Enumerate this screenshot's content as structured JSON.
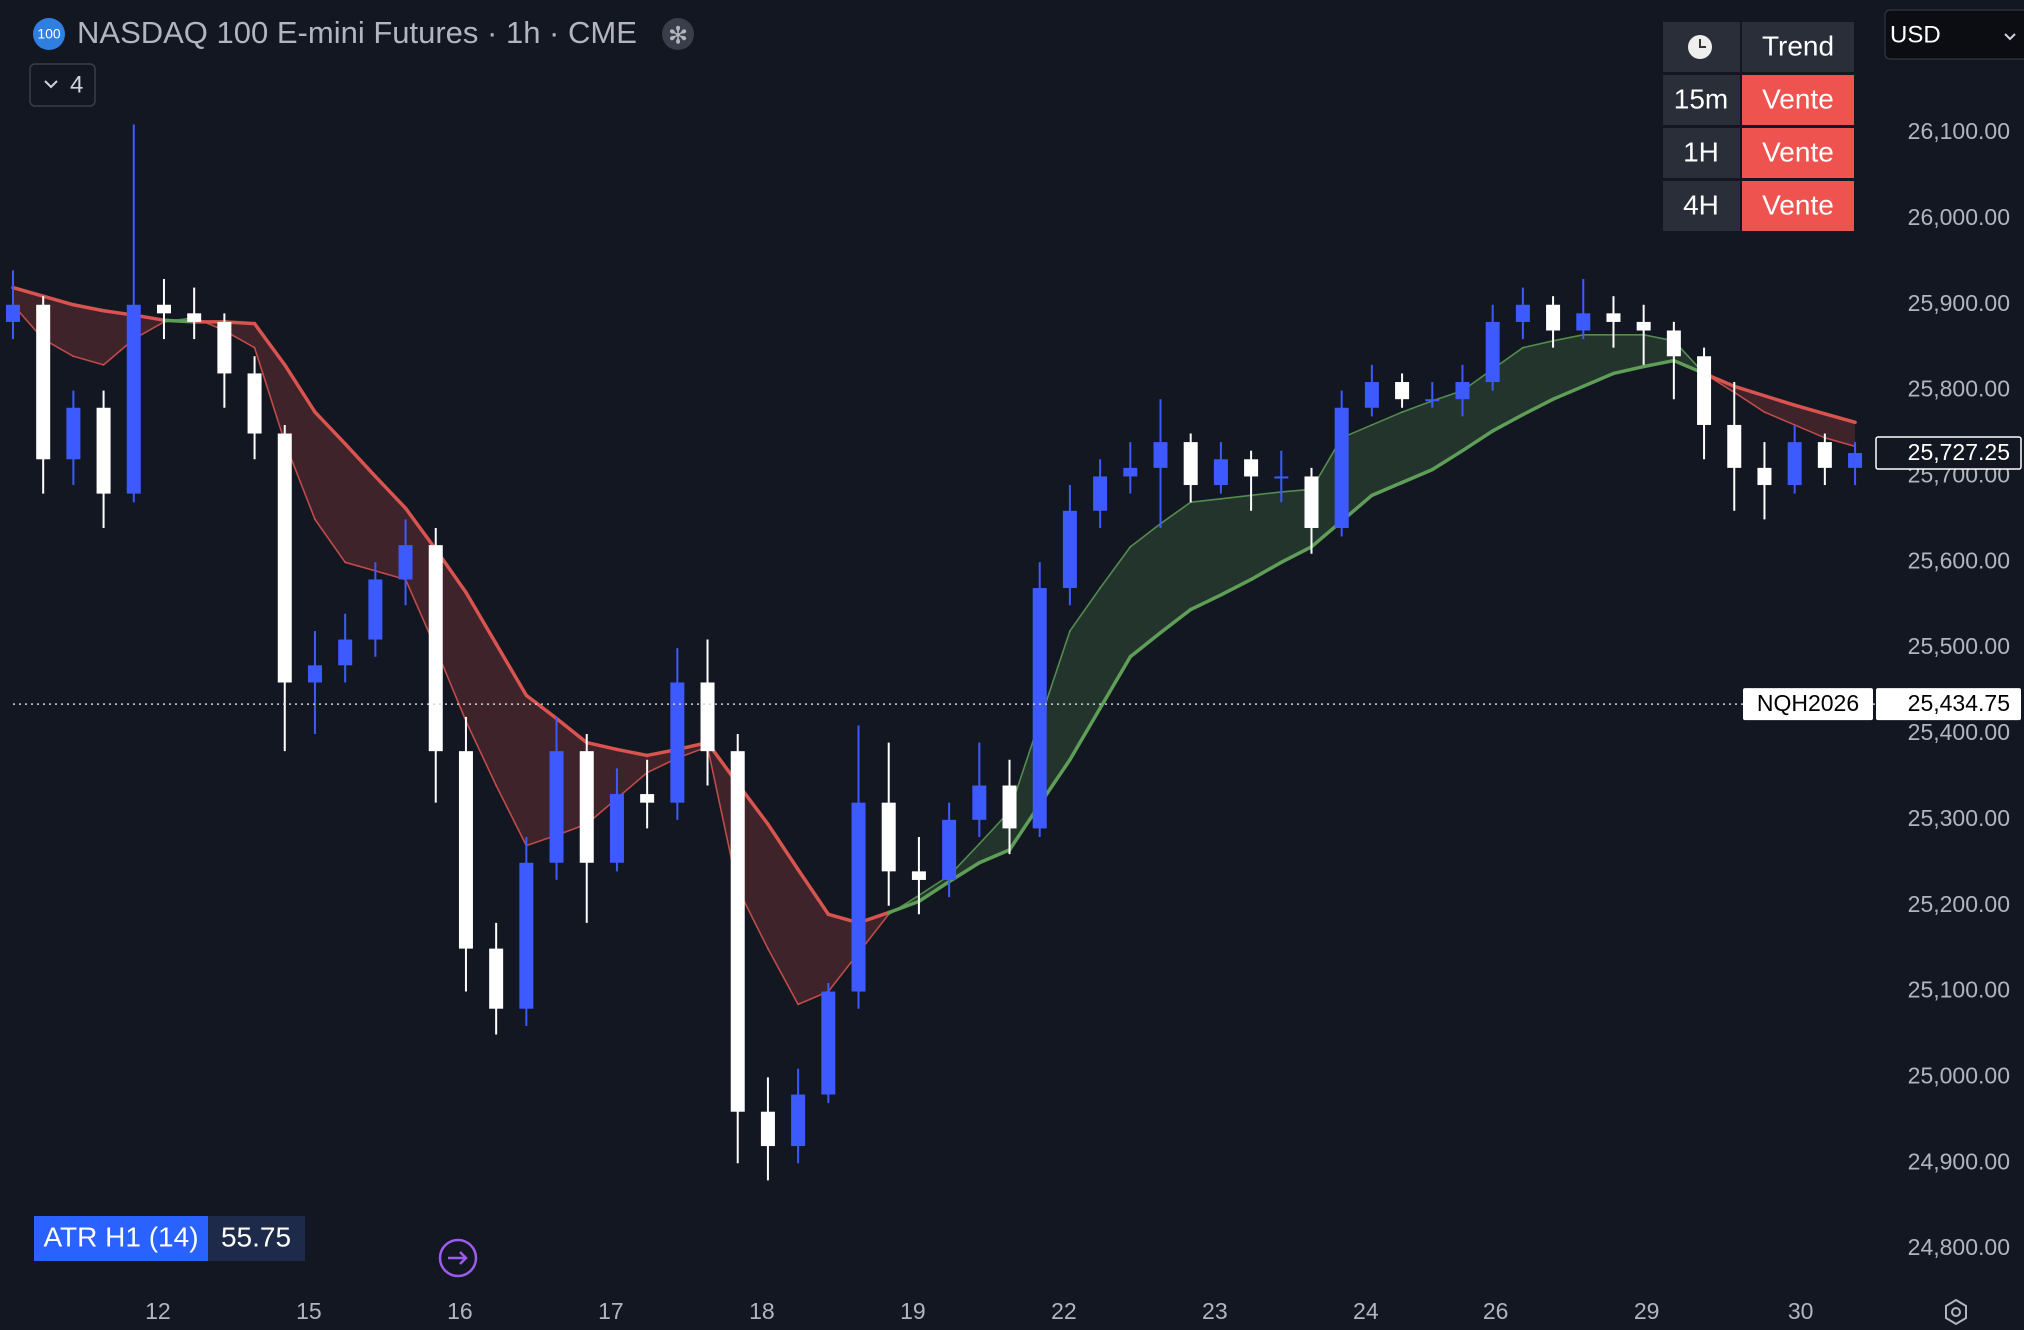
{
  "symbol": {
    "badge": "100",
    "title": "NASDAQ 100 E-mini Futures · 1h · CME",
    "indicator_count": "4",
    "currency": "USD"
  },
  "trend_table": {
    "header": "Trend",
    "rows": [
      [
        "15m",
        "Vente"
      ],
      [
        "1H",
        "Vente"
      ],
      [
        "4H",
        "Vente"
      ]
    ]
  },
  "atr": {
    "label": "ATR H1 (14)",
    "value": 55.75
  },
  "chart_data": {
    "type": "candlestick",
    "candle_up_color": "#3d5afe",
    "candle_down_color": "#ffffff",
    "candles": [
      [
        25880,
        25940,
        25860,
        25900
      ],
      [
        25900,
        25910,
        25680,
        25720
      ],
      [
        25720,
        25800,
        25690,
        25780
      ],
      [
        25780,
        25800,
        25640,
        25680
      ],
      [
        25680,
        26110,
        25670,
        25900
      ],
      [
        25900,
        25930,
        25860,
        25890
      ],
      [
        25890,
        25920,
        25860,
        25880
      ],
      [
        25880,
        25890,
        25780,
        25820
      ],
      [
        25820,
        25840,
        25720,
        25750
      ],
      [
        25750,
        25760,
        25380,
        25460
      ],
      [
        25460,
        25520,
        25400,
        25480
      ],
      [
        25480,
        25540,
        25460,
        25510
      ],
      [
        25510,
        25600,
        25490,
        25580
      ],
      [
        25580,
        25650,
        25550,
        25620
      ],
      [
        25620,
        25640,
        25320,
        25380
      ],
      [
        25380,
        25420,
        25100,
        25150
      ],
      [
        25150,
        25180,
        25050,
        25080
      ],
      [
        25080,
        25280,
        25060,
        25250
      ],
      [
        25250,
        25420,
        25230,
        25380
      ],
      [
        25380,
        25400,
        25180,
        25250
      ],
      [
        25250,
        25360,
        25240,
        25330
      ],
      [
        25330,
        25370,
        25290,
        25320
      ],
      [
        25320,
        25500,
        25300,
        25460
      ],
      [
        25460,
        25510,
        25340,
        25380
      ],
      [
        25380,
        25400,
        24900,
        24960
      ],
      [
        24960,
        25000,
        24880,
        24920
      ],
      [
        24920,
        25010,
        24900,
        24980
      ],
      [
        24980,
        25110,
        24970,
        25100
      ],
      [
        25100,
        25410,
        25080,
        25320
      ],
      [
        25320,
        25390,
        25200,
        25240
      ],
      [
        25240,
        25280,
        25190,
        25230
      ],
      [
        25230,
        25320,
        25210,
        25300
      ],
      [
        25300,
        25390,
        25280,
        25340
      ],
      [
        25340,
        25370,
        25260,
        25290
      ],
      [
        25290,
        25600,
        25280,
        25570
      ],
      [
        25570,
        25690,
        25550,
        25660
      ],
      [
        25660,
        25720,
        25640,
        25700
      ],
      [
        25700,
        25740,
        25680,
        25710
      ],
      [
        25710,
        25790,
        25640,
        25740
      ],
      [
        25740,
        25750,
        25670,
        25690
      ],
      [
        25690,
        25740,
        25680,
        25720
      ],
      [
        25720,
        25730,
        25660,
        25700
      ],
      [
        25700,
        25730,
        25670,
        25700
      ],
      [
        25700,
        25710,
        25610,
        25640
      ],
      [
        25640,
        25800,
        25630,
        25780
      ],
      [
        25780,
        25830,
        25770,
        25810
      ],
      [
        25810,
        25820,
        25780,
        25790
      ],
      [
        25790,
        25810,
        25780,
        25790
      ],
      [
        25790,
        25830,
        25770,
        25810
      ],
      [
        25810,
        25900,
        25800,
        25880
      ],
      [
        25880,
        25920,
        25860,
        25900
      ],
      [
        25900,
        25910,
        25850,
        25870
      ],
      [
        25870,
        25930,
        25860,
        25890
      ],
      [
        25890,
        25910,
        25850,
        25880
      ],
      [
        25880,
        25900,
        25830,
        25870
      ],
      [
        25870,
        25880,
        25790,
        25840
      ],
      [
        25840,
        25850,
        25720,
        25760
      ],
      [
        25760,
        25810,
        25660,
        25710
      ],
      [
        25710,
        25740,
        25650,
        25690
      ],
      [
        25690,
        25760,
        25680,
        25740
      ],
      [
        25740,
        25750,
        25690,
        25710
      ],
      [
        25710,
        25740,
        25690,
        25727.25
      ]
    ],
    "fast": [
      25900,
      25860,
      25840,
      25830,
      25860,
      25880,
      25885,
      25870,
      25850,
      25740,
      25650,
      25600,
      25590,
      25580,
      25500,
      25415,
      25340,
      25270,
      25282,
      25295,
      25325,
      25355,
      25372,
      25385,
      25220,
      25150,
      25085,
      25100,
      25145,
      25190,
      25212,
      25235,
      25272,
      25310,
      25415,
      25520,
      25570,
      25618,
      25645,
      25670,
      25674,
      25678,
      25682,
      25685,
      25745,
      25760,
      25775,
      25788,
      25800,
      25825,
      25850,
      25858,
      25865,
      25865,
      25865,
      25858,
      25820,
      25798,
      25775,
      25760,
      25745,
      25735
    ],
    "slow": [
      25920,
      25910,
      25900,
      25893,
      25888,
      25882,
      25880,
      25880,
      25878,
      25830,
      25775,
      25738,
      25700,
      25663,
      25615,
      25565,
      25505,
      25445,
      25418,
      25390,
      25382,
      25375,
      25382,
      25390,
      25342,
      25295,
      25242,
      25190,
      25180,
      25192,
      25205,
      25228,
      25250,
      25265,
      25318,
      25370,
      25430,
      25490,
      25518,
      25545,
      25562,
      25580,
      25600,
      25618,
      25648,
      25678,
      25693,
      25708,
      25730,
      25753,
      25772,
      25790,
      25805,
      25820,
      25828,
      25835,
      25820,
      25805,
      25794,
      25783,
      25773,
      25763
    ],
    "trend_up_color": "#5e9e57",
    "trend_down_color": "#d9534f",
    "xlim": [
      -0.43,
      61.76
    ],
    "xticks": [
      {
        "value": 4.8,
        "label": "12"
      },
      {
        "value": 9.8,
        "label": "15"
      },
      {
        "value": 14.8,
        "label": "16"
      },
      {
        "value": 19.8,
        "label": "17"
      },
      {
        "value": 24.8,
        "label": "18"
      },
      {
        "value": 29.8,
        "label": "19"
      },
      {
        "value": 34.8,
        "label": "22"
      },
      {
        "value": 39.8,
        "label": "23"
      },
      {
        "value": 44.8,
        "label": "24"
      },
      {
        "value": 49.1,
        "label": "26"
      },
      {
        "value": 54.1,
        "label": "29"
      },
      {
        "value": 59.2,
        "label": "30"
      }
    ],
    "ylim": [
      24750,
      26255
    ],
    "yticks": [
      {
        "value": 24800,
        "label": "24,800.00"
      },
      {
        "value": 24900,
        "label": "24,900.00"
      },
      {
        "value": 25000,
        "label": "25,000.00"
      },
      {
        "value": 25100,
        "label": "25,100.00"
      },
      {
        "value": 25200,
        "label": "25,200.00"
      },
      {
        "value": 25300,
        "label": "25,300.00"
      },
      {
        "value": 25400,
        "label": "25,400.00"
      },
      {
        "value": 25500,
        "label": "25,500.00"
      },
      {
        "value": 25600,
        "label": "25,600.00"
      },
      {
        "value": 25700,
        "label": "25,700.00"
      },
      {
        "value": 25800,
        "label": "25,800.00"
      },
      {
        "value": 25900,
        "label": "25,900.00"
      },
      {
        "value": 26000,
        "label": "26,000.00"
      },
      {
        "value": 26100,
        "label": "26,100.00"
      }
    ],
    "grid": false,
    "last_price": {
      "value": 25727.25,
      "label": "25,727.25"
    },
    "ref_line": {
      "name": "NQH2026",
      "value": 25434.75,
      "label": "25,434.75"
    }
  }
}
